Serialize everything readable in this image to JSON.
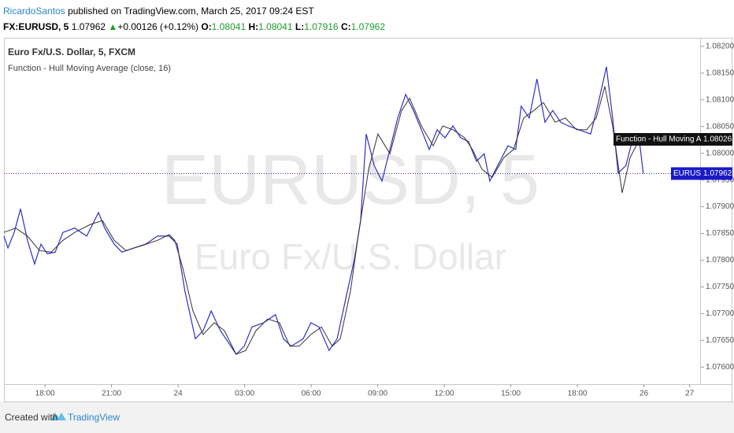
{
  "header": {
    "author": "RicardoSantos",
    "published": "published on TradingView.com, March 25, 2017 09:24 EST",
    "symbol": "FX:EURUSD, 5",
    "last": "1.07962",
    "change": "+0.00126 (+0.12%)",
    "ohlc": [
      {
        "label": "O:",
        "value": "1.08041"
      },
      {
        "label": "H:",
        "value": "1.08041"
      },
      {
        "label": "L:",
        "value": "1.07916"
      },
      {
        "label": "C:",
        "value": "1.07962"
      }
    ]
  },
  "chart_data": {
    "type": "line",
    "legend": [
      "Euro Fx/U.S. Dollar, 5, FXCM",
      "Function - Hull Moving Average (close, 16)"
    ],
    "watermark": [
      "EURUSD, 5",
      "Euro Fx/U.S. Dollar"
    ],
    "xlim": [
      16.15,
      47.57
    ],
    "xticks": [
      {
        "value": 18,
        "label": "18:00"
      },
      {
        "value": 21,
        "label": "21:00"
      },
      {
        "value": 24,
        "label": "24"
      },
      {
        "value": 27,
        "label": "03:00"
      },
      {
        "value": 30,
        "label": "06:00"
      },
      {
        "value": 33,
        "label": "09:00"
      },
      {
        "value": 36,
        "label": "12:00"
      },
      {
        "value": 39,
        "label": "15:00"
      },
      {
        "value": 42,
        "label": "18:00"
      },
      {
        "value": 45,
        "label": "26"
      },
      {
        "value": 47.06,
        "label": "27"
      }
    ],
    "ylim": [
      1.07568,
      1.08216
    ],
    "yticks": [
      {
        "value": 1.082,
        "label": "1.08200"
      },
      {
        "value": 1.0815,
        "label": "1.08150"
      },
      {
        "value": 1.081,
        "label": "1.08100"
      },
      {
        "value": 1.0805,
        "label": "1.08050"
      },
      {
        "value": 1.08,
        "label": "1.08000"
      },
      {
        "value": 1.0795,
        "label": "1.07950"
      },
      {
        "value": 1.079,
        "label": "1.07900"
      },
      {
        "value": 1.0785,
        "label": "1.07850"
      },
      {
        "value": 1.078,
        "label": "1.07800"
      },
      {
        "value": 1.0775,
        "label": "1.07750"
      },
      {
        "value": 1.077,
        "label": "1.07700"
      },
      {
        "value": 1.0765,
        "label": "1.07650"
      },
      {
        "value": 1.076,
        "label": "1.07600"
      }
    ],
    "grid": false,
    "series": [
      {
        "name": "EURUSD",
        "color": "#2f2fc8",
        "x": [
          16.15,
          16.33,
          16.61,
          16.9,
          17.21,
          17.53,
          17.82,
          18.1,
          18.46,
          18.81,
          19.34,
          19.88,
          20.41,
          20.69,
          21.12,
          21.47,
          22.01,
          22.54,
          23.07,
          23.6,
          23.96,
          24.31,
          24.78,
          25.13,
          25.49,
          25.91,
          26.27,
          26.62,
          26.98,
          27.33,
          27.86,
          28.39,
          28.75,
          29.1,
          29.64,
          29.99,
          30.35,
          30.81,
          31.17,
          31.59,
          31.95,
          32.23,
          32.48,
          32.84,
          33.19,
          33.55,
          33.9,
          34.26,
          34.61,
          34.97,
          35.32,
          35.68,
          36.03,
          36.39,
          36.74,
          37.09,
          37.45,
          37.8,
          38.05,
          38.41,
          38.87,
          39.22,
          39.47,
          39.83,
          40.18,
          40.54,
          40.89,
          41.25,
          41.6,
          42.06,
          42.6,
          42.95,
          43.31,
          43.59,
          43.84,
          44.19,
          44.55,
          44.8,
          44.97
        ],
        "values": [
          1.07845,
          1.07823,
          1.07852,
          1.07896,
          1.07837,
          1.07793,
          1.0783,
          1.07812,
          1.07815,
          1.07852,
          1.0786,
          1.07845,
          1.07889,
          1.0786,
          1.0783,
          1.07815,
          1.07823,
          1.0783,
          1.07845,
          1.07845,
          1.0783,
          1.07742,
          1.07653,
          1.07668,
          1.07705,
          1.07668,
          1.07646,
          1.07624,
          1.07639,
          1.07675,
          1.07683,
          1.07698,
          1.07653,
          1.07639,
          1.07653,
          1.07683,
          1.07675,
          1.07631,
          1.07653,
          1.07734,
          1.07801,
          1.07874,
          1.08036,
          1.07977,
          1.07948,
          1.08007,
          1.08066,
          1.0811,
          1.0808,
          1.08044,
          1.08007,
          1.08044,
          1.08029,
          1.08051,
          1.08029,
          1.08022,
          1.07985,
          1.07999,
          1.07948,
          1.07977,
          1.08014,
          1.08007,
          1.08088,
          1.08066,
          1.08139,
          1.08058,
          1.0808,
          1.08058,
          1.08051,
          1.08044,
          1.08036,
          1.08095,
          1.08162,
          1.08066,
          1.07963,
          1.07977,
          1.08036,
          1.08022,
          1.07962
        ]
      },
      {
        "name": "Function - Hull Moving Average",
        "color": "#333333",
        "x": [
          16.15,
          16.68,
          17.21,
          17.75,
          18.28,
          18.81,
          19.34,
          20.05,
          20.59,
          21.12,
          21.65,
          22.36,
          23.07,
          23.6,
          23.85,
          24.21,
          24.67,
          25.13,
          25.63,
          26.09,
          26.62,
          27.05,
          27.51,
          28.04,
          28.57,
          29.04,
          29.46,
          29.99,
          30.46,
          30.95,
          31.31,
          31.77,
          32.12,
          32.59,
          33.01,
          33.55,
          34.08,
          34.44,
          34.97,
          35.5,
          35.93,
          36.39,
          36.92,
          37.27,
          37.7,
          38.16,
          38.69,
          39.12,
          39.58,
          40.04,
          40.47,
          41.0,
          41.46,
          41.96,
          42.42,
          42.85,
          43.24,
          43.59,
          44.02,
          44.38,
          44.8
        ],
        "values": [
          1.07852,
          1.0786,
          1.07845,
          1.07818,
          1.07815,
          1.07837,
          1.07852,
          1.07867,
          1.07874,
          1.07837,
          1.07818,
          1.07827,
          1.07837,
          1.07848,
          1.07837,
          1.07786,
          1.07705,
          1.07661,
          1.07683,
          1.07668,
          1.07624,
          1.07631,
          1.07668,
          1.0769,
          1.07683,
          1.07639,
          1.07639,
          1.07661,
          1.07675,
          1.07639,
          1.07653,
          1.07742,
          1.07845,
          1.0797,
          1.08036,
          1.07999,
          1.0808,
          1.08103,
          1.08051,
          1.08014,
          1.08051,
          1.08044,
          1.08029,
          1.08007,
          1.0797,
          1.07955,
          1.07992,
          1.08007,
          1.08066,
          1.0808,
          1.08095,
          1.08058,
          1.08066,
          1.08044,
          1.08044,
          1.08066,
          1.08125,
          1.08051,
          1.07926,
          1.07992,
          1.08026
        ]
      }
    ]
  },
  "footer": {
    "created": "Created with",
    "brand": "TradingView"
  }
}
